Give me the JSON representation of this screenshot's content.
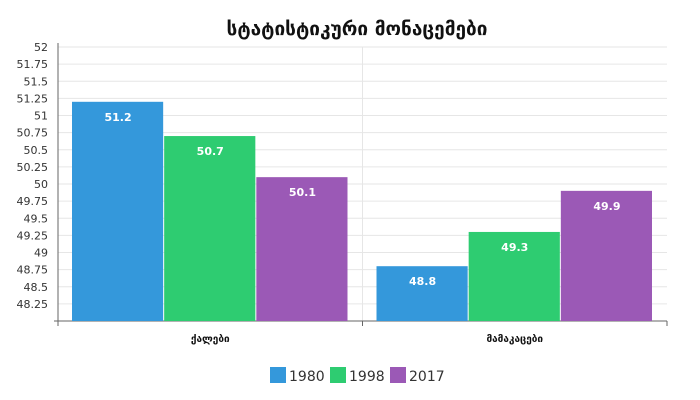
{
  "chart_data": {
    "type": "bar",
    "title": "სტატისტიკური მონაცემები",
    "categories": [
      "ქალები",
      "მამაკაცები"
    ],
    "series": [
      {
        "name": "1980",
        "values": [
          51.2,
          48.8
        ],
        "color": "#3498db"
      },
      {
        "name": "1998",
        "values": [
          50.7,
          49.3
        ],
        "color": "#2ecc71"
      },
      {
        "name": "2017",
        "values": [
          50.1,
          49.9
        ],
        "color": "#9b59b6"
      }
    ],
    "data_labels": [
      [
        "51.2",
        "48.8"
      ],
      [
        "50.7",
        "49.3"
      ],
      [
        "50.1",
        "49.9"
      ]
    ],
    "y_ticks": [
      "48.25",
      "48.5",
      "48.75",
      "49",
      "49.25",
      "49.5",
      "49.75",
      "50",
      "50.25",
      "50.5",
      "50.75",
      "51",
      "51.25",
      "51.5",
      "51.75",
      "52"
    ],
    "ylim": [
      48,
      52
    ],
    "xlabel": "",
    "ylabel": "",
    "grid": true,
    "legend_position": "bottom-center"
  }
}
